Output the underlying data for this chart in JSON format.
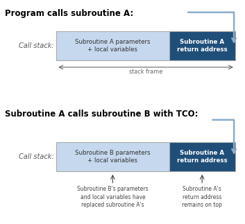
{
  "title1": "Program calls subroutine A:",
  "title2": "Subroutine A calls subroutine B with TCO:",
  "call_stack_label": "Call stack:",
  "light_blue": "#c5d8ed",
  "dark_blue": "#1f4e79",
  "box1_left_text": "Subroutine A parameters\n+ local variables",
  "box1_right_text": "Subroutine A\nreturn address",
  "box2_left_text": "Subroutine B parameters\n+ local variables",
  "box2_right_text": "Subroutine A\nreturn address",
  "stack_frame_label": "stack frame",
  "annotation1": "Subroutine B's parameters\nand local variables have\nreplaced subroutine A's",
  "annotation2": "Subroutine A's\nreturn address\nremains on top",
  "arrow_color": "#8aacca",
  "arrow_text_color": "#666666",
  "fig_w": 3.53,
  "fig_h": 3.23,
  "dpi": 100
}
